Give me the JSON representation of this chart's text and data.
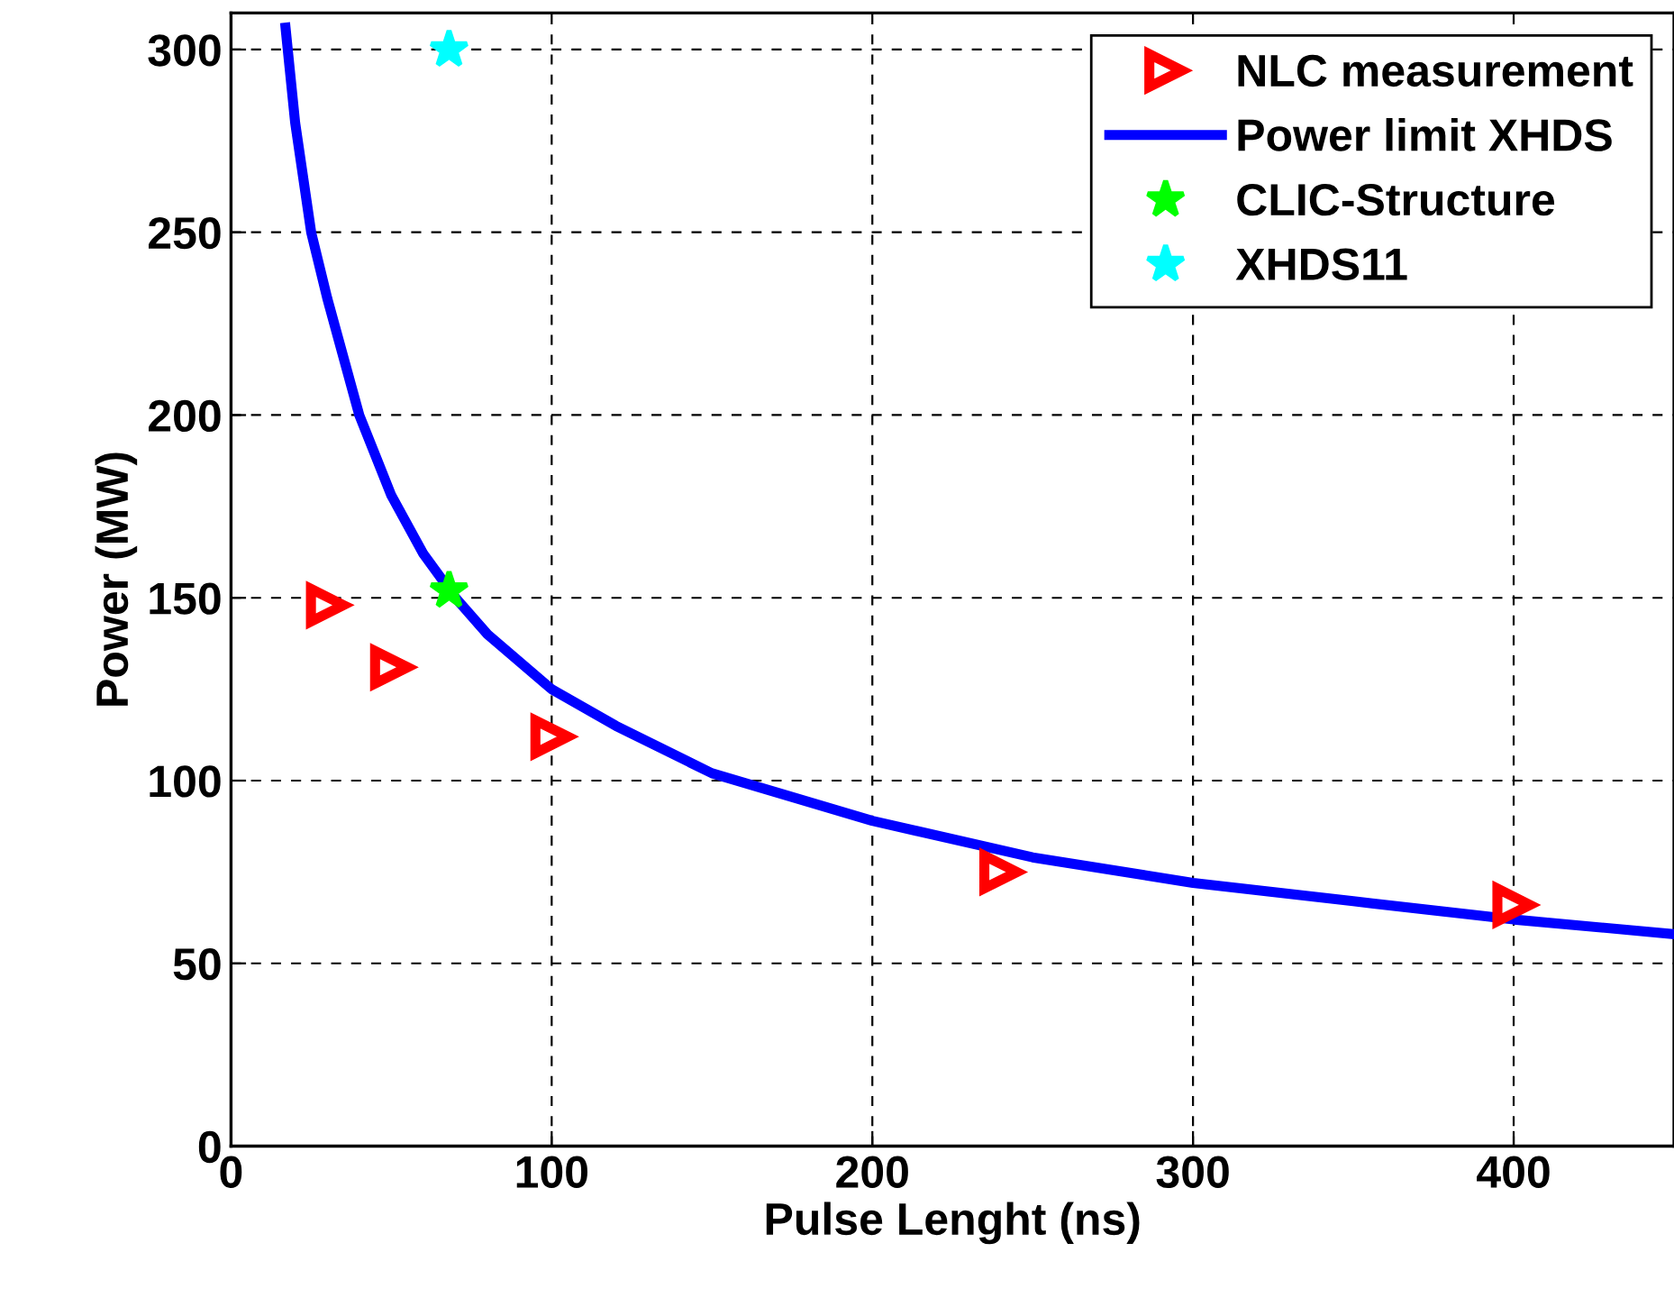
{
  "chart_data": {
    "type": "scatter",
    "xlabel": "Pulse Lenght (ns)",
    "ylabel": "Power (MW)",
    "xlim": [
      0,
      450
    ],
    "ylim": [
      0,
      310
    ],
    "xticks": [
      0,
      100,
      200,
      300,
      400
    ],
    "yticks": [
      0,
      50,
      100,
      150,
      200,
      250,
      300
    ],
    "grid": true,
    "legend": "top right",
    "series": [
      {
        "name": "NLC measurement",
        "marker": "triangle",
        "color": "#ff0000",
        "x": [
          30,
          50,
          100,
          240,
          400
        ],
        "values": [
          148,
          131,
          112,
          75,
          66
        ]
      },
      {
        "name": "Power limit XHDS",
        "type": "line",
        "marker": "none",
        "line_style": "solid",
        "color": "#0000ff",
        "x": [
          17,
          20,
          25,
          30,
          40,
          50,
          60,
          70,
          80,
          100,
          120,
          150,
          200,
          250,
          300,
          350,
          400,
          450
        ],
        "values": [
          306,
          280,
          250,
          232,
          200,
          178,
          162,
          150,
          140,
          125,
          115,
          102,
          89,
          79,
          72,
          67,
          62,
          58
        ]
      },
      {
        "name": "CLIC-Structure",
        "marker": "star",
        "color": "#00ff00",
        "x": [
          68
        ],
        "values": [
          152
        ]
      },
      {
        "name": "XHDS11",
        "marker": "star",
        "color": "#00ffff",
        "x": [
          68
        ],
        "values": [
          300
        ]
      }
    ]
  }
}
